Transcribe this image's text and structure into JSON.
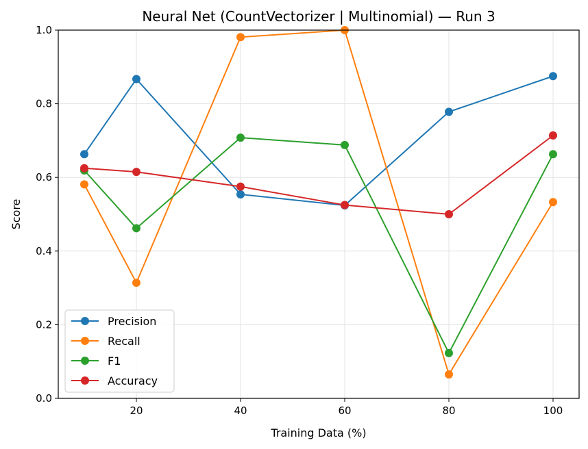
{
  "chart_data": {
    "type": "line",
    "title": "Neural Net (CountVectorizer | Multinomial) — Run 3",
    "xlabel": "Training Data (%)",
    "ylabel": "Score",
    "x": [
      10,
      20,
      40,
      60,
      80,
      100
    ],
    "xticks": [
      "20",
      "40",
      "60",
      "80",
      "100"
    ],
    "yticks": [
      "0.0",
      "0.2",
      "0.4",
      "0.6",
      "0.8",
      "1.0"
    ],
    "xlim": [
      5,
      105
    ],
    "ylim": [
      0,
      1
    ],
    "grid": true,
    "legend_position": "lower-left",
    "series": [
      {
        "name": "Precision",
        "color": "#1f77b4",
        "values": [
          0.663,
          0.867,
          0.554,
          0.524,
          0.778,
          0.875
        ]
      },
      {
        "name": "Recall",
        "color": "#ff7f0e",
        "values": [
          0.581,
          0.314,
          0.981,
          1.0,
          0.065,
          0.533
        ]
      },
      {
        "name": "F1",
        "color": "#2ca02c",
        "values": [
          0.619,
          0.462,
          0.708,
          0.688,
          0.123,
          0.663
        ]
      },
      {
        "name": "Accuracy",
        "color": "#d62728",
        "values": [
          0.625,
          0.615,
          0.575,
          0.525,
          0.5,
          0.714
        ]
      }
    ]
  }
}
